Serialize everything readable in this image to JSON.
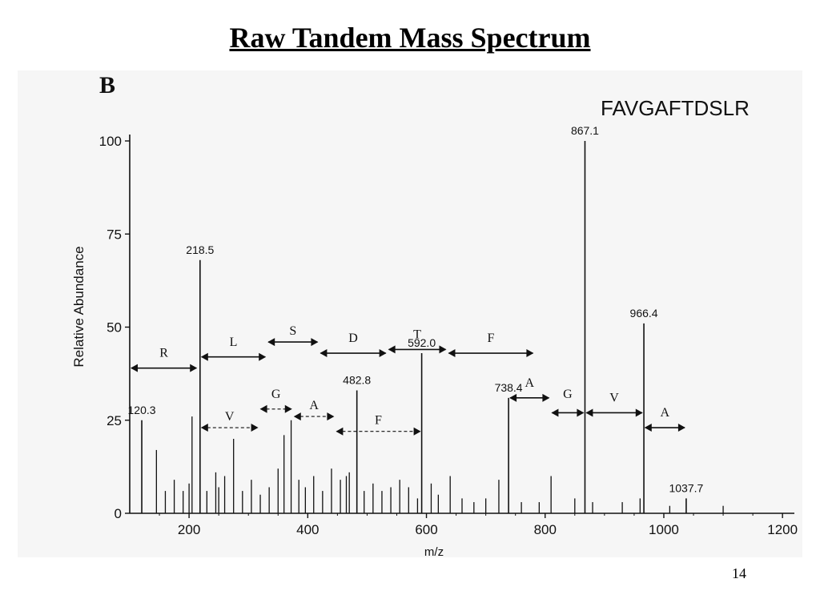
{
  "slide": {
    "title": "Raw Tandem Mass Spectrum",
    "page_number": "14"
  },
  "chart_data": {
    "type": "bar",
    "panel_label": "B",
    "peptide": "FAVGAFTDSLR",
    "xlabel": "m/z",
    "ylabel": "Relative Abundance",
    "xlim": [
      100,
      1220
    ],
    "ylim": [
      0,
      100
    ],
    "x_ticks": [
      "200",
      "400",
      "600",
      "800",
      "1000",
      "1200"
    ],
    "y_ticks": [
      "0",
      "25",
      "50",
      "75",
      "100"
    ],
    "peak_labels": [
      "120.3",
      "218.5",
      "482.8",
      "592.0",
      "738.4",
      "867.1",
      "966.4",
      "1037.7"
    ],
    "labeled_peaks": [
      {
        "mz": 120.3,
        "intensity": 25
      },
      {
        "mz": 218.5,
        "intensity": 68
      },
      {
        "mz": 482.8,
        "intensity": 33
      },
      {
        "mz": 592.0,
        "intensity": 43
      },
      {
        "mz": 738.4,
        "intensity": 31
      },
      {
        "mz": 867.1,
        "intensity": 100
      },
      {
        "mz": 966.4,
        "intensity": 51
      },
      {
        "mz": 1037.7,
        "intensity": 4
      }
    ],
    "minor_peaks": [
      {
        "mz": 145,
        "intensity": 17
      },
      {
        "mz": 160,
        "intensity": 6
      },
      {
        "mz": 175,
        "intensity": 9
      },
      {
        "mz": 190,
        "intensity": 6
      },
      {
        "mz": 200,
        "intensity": 8
      },
      {
        "mz": 205,
        "intensity": 26
      },
      {
        "mz": 230,
        "intensity": 6
      },
      {
        "mz": 245,
        "intensity": 11
      },
      {
        "mz": 250,
        "intensity": 7
      },
      {
        "mz": 260,
        "intensity": 10
      },
      {
        "mz": 275,
        "intensity": 20
      },
      {
        "mz": 290,
        "intensity": 6
      },
      {
        "mz": 305,
        "intensity": 9
      },
      {
        "mz": 320,
        "intensity": 5
      },
      {
        "mz": 335,
        "intensity": 7
      },
      {
        "mz": 350,
        "intensity": 12
      },
      {
        "mz": 360,
        "intensity": 21
      },
      {
        "mz": 372,
        "intensity": 25
      },
      {
        "mz": 385,
        "intensity": 9
      },
      {
        "mz": 396,
        "intensity": 7
      },
      {
        "mz": 410,
        "intensity": 10
      },
      {
        "mz": 425,
        "intensity": 6
      },
      {
        "mz": 440,
        "intensity": 12
      },
      {
        "mz": 455,
        "intensity": 9
      },
      {
        "mz": 465,
        "intensity": 10
      },
      {
        "mz": 470,
        "intensity": 11
      },
      {
        "mz": 495,
        "intensity": 6
      },
      {
        "mz": 510,
        "intensity": 8
      },
      {
        "mz": 525,
        "intensity": 6
      },
      {
        "mz": 540,
        "intensity": 7
      },
      {
        "mz": 555,
        "intensity": 9
      },
      {
        "mz": 570,
        "intensity": 7
      },
      {
        "mz": 585,
        "intensity": 4
      },
      {
        "mz": 608,
        "intensity": 8
      },
      {
        "mz": 620,
        "intensity": 5
      },
      {
        "mz": 640,
        "intensity": 10
      },
      {
        "mz": 660,
        "intensity": 4
      },
      {
        "mz": 680,
        "intensity": 3
      },
      {
        "mz": 700,
        "intensity": 4
      },
      {
        "mz": 722,
        "intensity": 9
      },
      {
        "mz": 760,
        "intensity": 3
      },
      {
        "mz": 790,
        "intensity": 3
      },
      {
        "mz": 810,
        "intensity": 10
      },
      {
        "mz": 850,
        "intensity": 4
      },
      {
        "mz": 880,
        "intensity": 3
      },
      {
        "mz": 930,
        "intensity": 3
      },
      {
        "mz": 960,
        "intensity": 4
      },
      {
        "mz": 1010,
        "intensity": 2
      },
      {
        "mz": 1100,
        "intensity": 2
      }
    ],
    "ion_series": [
      {
        "label": "R",
        "style": "solid",
        "from_mz": 100,
        "to_mz": 215,
        "y": 39,
        "label_y": 42
      },
      {
        "label": "L",
        "style": "solid",
        "from_mz": 218.5,
        "to_mz": 331,
        "y": 42,
        "label_y": 45
      },
      {
        "label": "S",
        "style": "solid",
        "from_mz": 331,
        "to_mz": 419,
        "y": 46,
        "label_y": 48
      },
      {
        "label": "D",
        "style": "solid",
        "from_mz": 419,
        "to_mz": 534,
        "y": 43,
        "label_y": 46
      },
      {
        "label": "T",
        "style": "solid",
        "from_mz": 534,
        "to_mz": 635,
        "y": 44,
        "label_y": 47
      },
      {
        "label": "F",
        "style": "solid",
        "from_mz": 635,
        "to_mz": 782,
        "y": 43,
        "label_y": 46
      },
      {
        "label": "V",
        "style": "dashed",
        "from_mz": 218.5,
        "to_mz": 318,
        "y": 23,
        "label_y": 25
      },
      {
        "label": "G",
        "style": "dashed",
        "from_mz": 318,
        "to_mz": 375,
        "y": 28,
        "label_y": 31
      },
      {
        "label": "A",
        "style": "dashed",
        "from_mz": 375,
        "to_mz": 446,
        "y": 26,
        "label_y": 28
      },
      {
        "label": "F",
        "style": "dashed",
        "from_mz": 446,
        "to_mz": 592,
        "y": 22,
        "label_y": 24
      },
      {
        "label": "A",
        "style": "solid",
        "from_mz": 738.4,
        "to_mz": 809,
        "y": 31,
        "label_y": 34
      },
      {
        "label": "G",
        "style": "solid",
        "from_mz": 809,
        "to_mz": 867,
        "y": 27,
        "label_y": 31
      },
      {
        "label": "V",
        "style": "solid",
        "from_mz": 867,
        "to_mz": 966,
        "y": 27,
        "label_y": 30
      },
      {
        "label": "A",
        "style": "solid",
        "from_mz": 966,
        "to_mz": 1037.7,
        "y": 23,
        "label_y": 26
      }
    ],
    "grid": false,
    "colors": {
      "ink": "#111111",
      "paper": "#f6f6f6"
    }
  }
}
